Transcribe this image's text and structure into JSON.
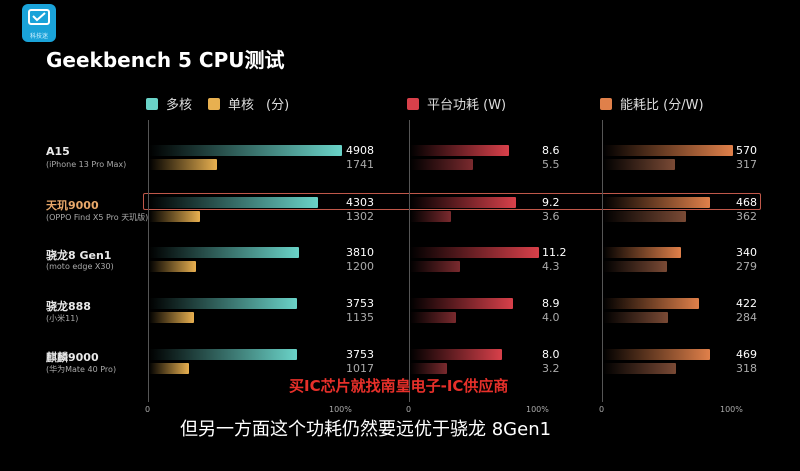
{
  "logo": {
    "text": "科技迷"
  },
  "title": "Geekbench 5 CPU测试",
  "legend": {
    "multi": "多核",
    "single": "单核",
    "unit1": "(分)",
    "power": "平台功耗 (W)",
    "efficiency": "能耗比 (分/W)"
  },
  "colors": {
    "multi": "#6ad3c8",
    "single": "#e8b050",
    "power_multi": "#d8404a",
    "power_single": "#7a2a2e",
    "eff_multi": "#e0804a",
    "eff_single": "#7a4a35"
  },
  "chart_data": [
    {
      "type": "bar",
      "title": "",
      "categories": [
        "A15",
        "天玑9000",
        "骁龙8 Gen1",
        "骁龙888",
        "麒麟9000"
      ],
      "subtitles": [
        "(iPhone 13 Pro Max)",
        "(OPPO Find X5 Pro 天玑版)",
        "(moto edge X30)",
        "(小米11)",
        "(华为Mate 40 Pro)"
      ],
      "series": [
        {
          "name": "多核",
          "values": [
            4908,
            4303,
            3810,
            3753,
            3753
          ]
        },
        {
          "name": "单核",
          "values": [
            1741,
            1302,
            1200,
            1135,
            1017
          ]
        }
      ],
      "xlim": [
        0,
        4908
      ],
      "ticks": [
        "0",
        "100%"
      ]
    },
    {
      "type": "bar",
      "title": "",
      "categories": [
        "A15",
        "天玑9000",
        "骁龙8 Gen1",
        "骁龙888",
        "麒麟9000"
      ],
      "series": [
        {
          "name": "",
          "values": [
            8.6,
            9.2,
            11.2,
            8.9,
            8.0
          ]
        },
        {
          "name": "",
          "values": [
            5.5,
            3.6,
            4.3,
            4.0,
            3.2
          ]
        }
      ],
      "xlim": [
        0,
        11.2
      ],
      "ticks": [
        "0",
        "100%"
      ]
    },
    {
      "type": "bar",
      "title": "",
      "categories": [
        "A15",
        "天玑9000",
        "骁龙8 Gen1",
        "骁龙888",
        "麒麟9000"
      ],
      "series": [
        {
          "name": "",
          "values": [
            570,
            468,
            340,
            422,
            469
          ]
        },
        {
          "name": "",
          "values": [
            317,
            362,
            279,
            284,
            318
          ]
        }
      ],
      "xlim": [
        0,
        570
      ],
      "ticks": [
        "0",
        "100%"
      ]
    }
  ],
  "value_labels": {
    "cpu": [
      [
        "4908",
        "1741"
      ],
      [
        "4303",
        "1302"
      ],
      [
        "3810",
        "1200"
      ],
      [
        "3753",
        "1135"
      ],
      [
        "3753",
        "1017"
      ]
    ],
    "power": [
      [
        "8.6",
        "5.5"
      ],
      [
        "9.2",
        "3.6"
      ],
      [
        "11.2",
        "4.3"
      ],
      [
        "8.9",
        "4.0"
      ],
      [
        "8.0",
        "3.2"
      ]
    ],
    "eff": [
      [
        "570",
        "317"
      ],
      [
        "468",
        "362"
      ],
      [
        "340",
        "279"
      ],
      [
        "422",
        "284"
      ],
      [
        "469",
        "318"
      ]
    ]
  },
  "watermark": "买IC芯片就找南皇电子-IC供应商",
  "subtitle": "但另一方面这个功耗仍然要远优于骁龙 8Gen1"
}
